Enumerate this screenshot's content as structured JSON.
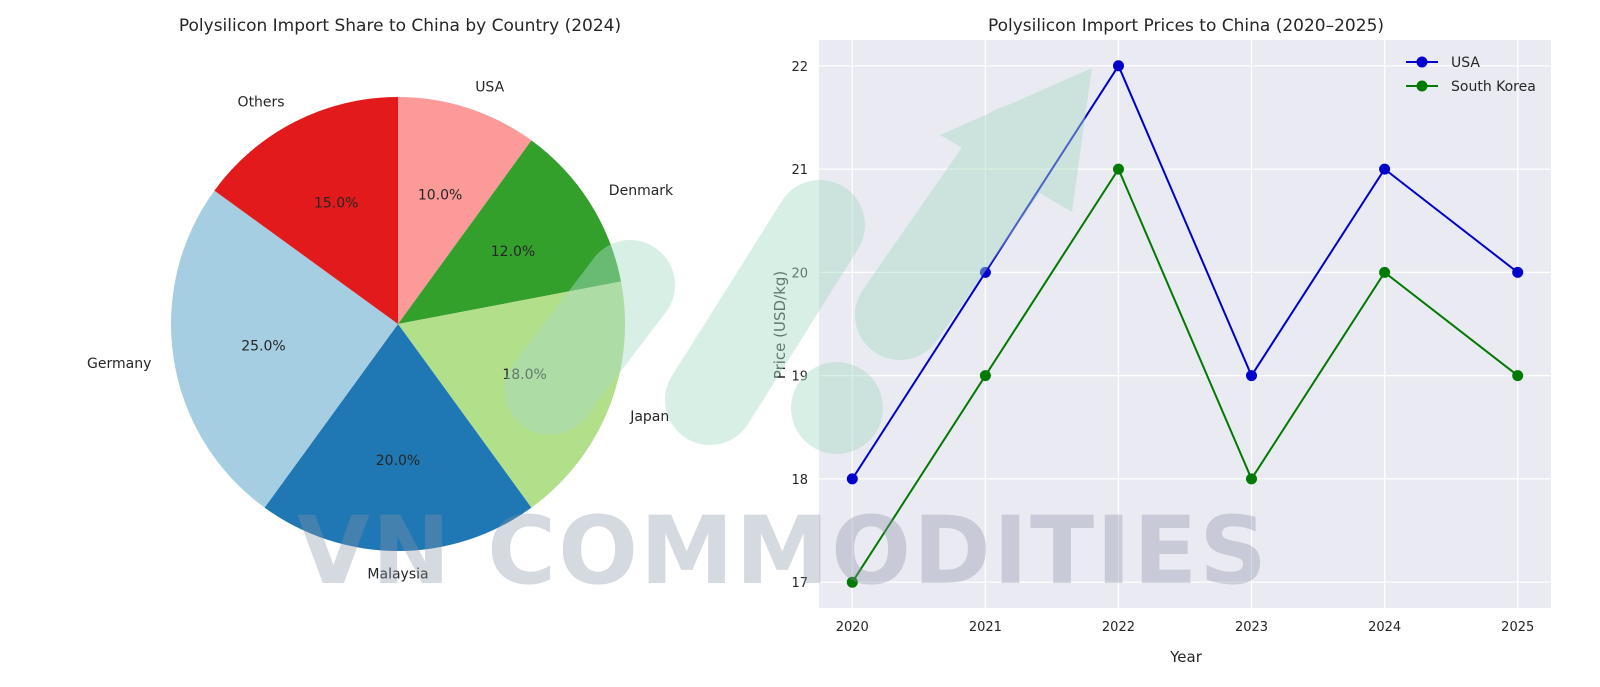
{
  "watermark": {
    "text": "VN COMMODITIES",
    "text_color": "#8a93a8",
    "arrow_color": "#a8dcc4"
  },
  "chart_data": [
    {
      "type": "pie",
      "title": "Polysilicon Import Share to China by Country (2024)",
      "start_angle_deg": 90,
      "direction": "clockwise",
      "slices": [
        {
          "label": "USA",
          "value": 10.0,
          "pct_label": "10.0%",
          "color": "#fb9a99"
        },
        {
          "label": "Denmark",
          "value": 12.0,
          "pct_label": "12.0%",
          "color": "#33a02c"
        },
        {
          "label": "Japan",
          "value": 18.0,
          "pct_label": "18.0%",
          "color": "#b2df8a"
        },
        {
          "label": "Malaysia",
          "value": 20.0,
          "pct_label": "20.0%",
          "color": "#1f78b4"
        },
        {
          "label": "Germany",
          "value": 25.0,
          "pct_label": "25.0%",
          "color": "#a6cee3"
        },
        {
          "label": "Others",
          "value": 15.0,
          "pct_label": "15.0%",
          "color": "#e31a1c"
        }
      ]
    },
    {
      "type": "line",
      "title": "Polysilicon Import Prices to China (2020–2025)",
      "xlabel": "Year",
      "ylabel": "Price (USD/kg)",
      "x": [
        2020,
        2021,
        2022,
        2023,
        2024,
        2025
      ],
      "x_tick_labels": [
        "2020",
        "2021",
        "2022",
        "2023",
        "2024",
        "2025"
      ],
      "y_ticks": [
        17,
        18,
        19,
        20,
        21,
        22
      ],
      "y_tick_labels": [
        "17",
        "18",
        "19",
        "20",
        "21",
        "22"
      ],
      "xlim": [
        2019.75,
        2025.25
      ],
      "ylim": [
        16.75,
        22.25
      ],
      "grid": true,
      "legend_position": "top-right",
      "background": "#eaeaf2",
      "series": [
        {
          "name": "USA",
          "color": "#0000cd",
          "values": [
            18,
            20,
            22,
            19,
            21,
            20
          ]
        },
        {
          "name": "South Korea",
          "color": "#007a00",
          "values": [
            17,
            19,
            21,
            18,
            20,
            19
          ]
        }
      ]
    }
  ]
}
